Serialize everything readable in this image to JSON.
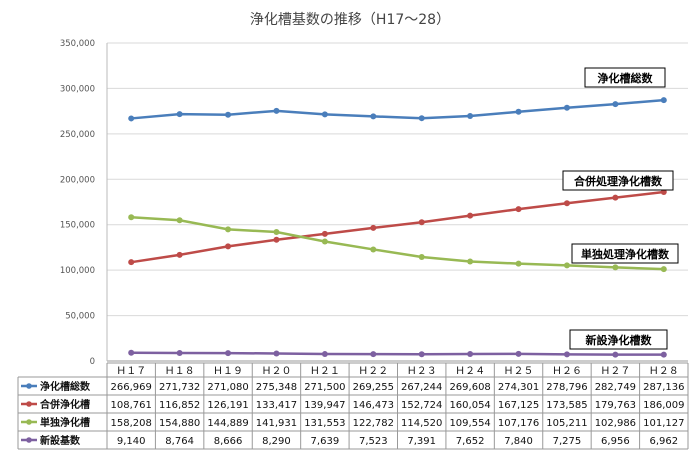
{
  "chart_data": {
    "type": "line",
    "title": "浄化槽基数の推移（H17～28）",
    "categories": [
      "Ｈ１７",
      "Ｈ１８",
      "Ｈ１９",
      "Ｈ２０",
      "Ｈ２１",
      "Ｈ２２",
      "Ｈ２３",
      "Ｈ２４",
      "Ｈ２５",
      "Ｈ２６",
      "Ｈ２７",
      "Ｈ２８"
    ],
    "ylim": [
      0,
      350000
    ],
    "yticks": [
      "0",
      "50,000",
      "100,000",
      "150,000",
      "200,000",
      "250,000",
      "300,000",
      "350,000"
    ],
    "grid": true,
    "legend": "data-table",
    "series": [
      {
        "name": "浄化槽総数",
        "callout": "浄化槽総数",
        "color": "#4a7ebb",
        "values": [
          266969,
          271732,
          271080,
          275348,
          271500,
          269255,
          267244,
          269608,
          274301,
          278796,
          282749,
          287136
        ],
        "labels": [
          "266,969",
          "271,732",
          "271,080",
          "275,348",
          "271,500",
          "269,255",
          "267,244",
          "269,608",
          "274,301",
          "278,796",
          "282,749",
          "287,136"
        ]
      },
      {
        "name": "合併浄化槽",
        "callout": "合併処理浄化槽数",
        "color": "#be4b48",
        "values": [
          108761,
          116852,
          126191,
          133417,
          139947,
          146473,
          152724,
          160054,
          167125,
          173585,
          179763,
          186009
        ],
        "labels": [
          "108,761",
          "116,852",
          "126,191",
          "133,417",
          "139,947",
          "146,473",
          "152,724",
          "160,054",
          "167,125",
          "173,585",
          "179,763",
          "186,009"
        ]
      },
      {
        "name": "単独浄化槽",
        "callout": "単独処理浄化槽数",
        "color": "#98b954",
        "values": [
          158208,
          154880,
          144889,
          141931,
          131553,
          122782,
          114520,
          109554,
          107176,
          105211,
          102986,
          101127
        ],
        "labels": [
          "158,208",
          "154,880",
          "144,889",
          "141,931",
          "131,553",
          "122,782",
          "114,520",
          "109,554",
          "107,176",
          "105,211",
          "102,986",
          "101,127"
        ]
      },
      {
        "name": "新設基数",
        "callout": "新設浄化槽数",
        "color": "#7d60a0",
        "values": [
          9140,
          8764,
          8666,
          8290,
          7639,
          7523,
          7391,
          7652,
          7840,
          7275,
          6956,
          6962
        ],
        "labels": [
          "9,140",
          "8,764",
          "8,666",
          "8,290",
          "7,639",
          "7,523",
          "7,391",
          "7,652",
          "7,840",
          "7,275",
          "6,956",
          "6,962"
        ]
      }
    ]
  }
}
